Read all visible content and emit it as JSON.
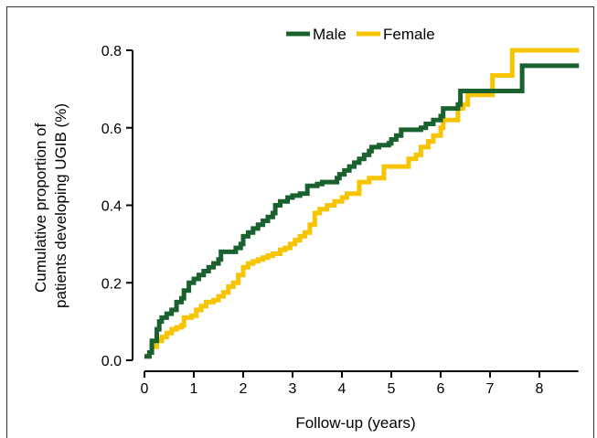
{
  "chart_data": {
    "type": "line",
    "step": true,
    "title": "",
    "xlabel": "Follow-up (years)",
    "ylabel": [
      "Cumulative proportion of",
      "patients developing UGIB (%)"
    ],
    "xlim": [
      -0.2,
      8.9
    ],
    "ylim": [
      0.0,
      0.8
    ],
    "xticks": [
      "0",
      "1",
      "2",
      "3",
      "4",
      "5",
      "6",
      "7",
      "8"
    ],
    "yticks": [
      "0.0",
      "0.2",
      "0.4",
      "0.6",
      "0.8"
    ],
    "grid": false,
    "legend_position": "top-center",
    "series": [
      {
        "name": "Male",
        "color": "#1a6130",
        "points": [
          [
            0.0,
            0.01
          ],
          [
            0.1,
            0.02
          ],
          [
            0.15,
            0.05
          ],
          [
            0.25,
            0.08
          ],
          [
            0.3,
            0.1
          ],
          [
            0.35,
            0.11
          ],
          [
            0.45,
            0.12
          ],
          [
            0.55,
            0.13
          ],
          [
            0.65,
            0.15
          ],
          [
            0.75,
            0.16
          ],
          [
            0.8,
            0.18
          ],
          [
            0.9,
            0.2
          ],
          [
            1.0,
            0.21
          ],
          [
            1.1,
            0.22
          ],
          [
            1.2,
            0.23
          ],
          [
            1.3,
            0.24
          ],
          [
            1.4,
            0.25
          ],
          [
            1.5,
            0.26
          ],
          [
            1.55,
            0.28
          ],
          [
            1.75,
            0.28
          ],
          [
            1.85,
            0.29
          ],
          [
            1.95,
            0.3
          ],
          [
            2.0,
            0.32
          ],
          [
            2.1,
            0.33
          ],
          [
            2.2,
            0.34
          ],
          [
            2.3,
            0.35
          ],
          [
            2.4,
            0.36
          ],
          [
            2.5,
            0.37
          ],
          [
            2.6,
            0.38
          ],
          [
            2.65,
            0.4
          ],
          [
            2.75,
            0.41
          ],
          [
            2.9,
            0.42
          ],
          [
            3.0,
            0.425
          ],
          [
            3.15,
            0.43
          ],
          [
            3.3,
            0.45
          ],
          [
            3.5,
            0.455
          ],
          [
            3.6,
            0.46
          ],
          [
            3.9,
            0.47
          ],
          [
            3.95,
            0.48
          ],
          [
            4.05,
            0.49
          ],
          [
            4.15,
            0.5
          ],
          [
            4.25,
            0.51
          ],
          [
            4.35,
            0.52
          ],
          [
            4.45,
            0.53
          ],
          [
            4.55,
            0.54
          ],
          [
            4.6,
            0.55
          ],
          [
            4.75,
            0.555
          ],
          [
            4.95,
            0.56
          ],
          [
            5.0,
            0.57
          ],
          [
            5.1,
            0.58
          ],
          [
            5.2,
            0.595
          ],
          [
            5.5,
            0.595
          ],
          [
            5.6,
            0.6
          ],
          [
            5.7,
            0.61
          ],
          [
            5.85,
            0.62
          ],
          [
            6.0,
            0.63
          ],
          [
            6.05,
            0.65
          ],
          [
            6.3,
            0.65
          ],
          [
            6.35,
            0.66
          ],
          [
            6.4,
            0.695
          ],
          [
            7.6,
            0.695
          ],
          [
            7.65,
            0.76
          ],
          [
            8.8,
            0.76
          ]
        ]
      },
      {
        "name": "Female",
        "color": "#f6c400",
        "points": [
          [
            0.0,
            0.01
          ],
          [
            0.1,
            0.02
          ],
          [
            0.15,
            0.035
          ],
          [
            0.25,
            0.05
          ],
          [
            0.35,
            0.06
          ],
          [
            0.45,
            0.07
          ],
          [
            0.55,
            0.08
          ],
          [
            0.65,
            0.085
          ],
          [
            0.75,
            0.09
          ],
          [
            0.8,
            0.11
          ],
          [
            0.95,
            0.115
          ],
          [
            1.05,
            0.13
          ],
          [
            1.15,
            0.14
          ],
          [
            1.25,
            0.15
          ],
          [
            1.4,
            0.155
          ],
          [
            1.5,
            0.165
          ],
          [
            1.6,
            0.175
          ],
          [
            1.7,
            0.19
          ],
          [
            1.8,
            0.2
          ],
          [
            1.9,
            0.22
          ],
          [
            2.0,
            0.24
          ],
          [
            2.1,
            0.25
          ],
          [
            2.2,
            0.255
          ],
          [
            2.3,
            0.26
          ],
          [
            2.4,
            0.265
          ],
          [
            2.5,
            0.27
          ],
          [
            2.6,
            0.275
          ],
          [
            2.75,
            0.285
          ],
          [
            2.85,
            0.29
          ],
          [
            2.95,
            0.3
          ],
          [
            3.05,
            0.31
          ],
          [
            3.15,
            0.32
          ],
          [
            3.25,
            0.33
          ],
          [
            3.35,
            0.35
          ],
          [
            3.45,
            0.38
          ],
          [
            3.55,
            0.39
          ],
          [
            3.7,
            0.4
          ],
          [
            3.85,
            0.41
          ],
          [
            4.0,
            0.42
          ],
          [
            4.1,
            0.43
          ],
          [
            4.3,
            0.43
          ],
          [
            4.35,
            0.46
          ],
          [
            4.55,
            0.47
          ],
          [
            4.8,
            0.47
          ],
          [
            4.85,
            0.5
          ],
          [
            5.3,
            0.5
          ],
          [
            5.35,
            0.52
          ],
          [
            5.5,
            0.53
          ],
          [
            5.6,
            0.55
          ],
          [
            5.75,
            0.565
          ],
          [
            5.85,
            0.58
          ],
          [
            6.0,
            0.6
          ],
          [
            6.05,
            0.62
          ],
          [
            6.3,
            0.62
          ],
          [
            6.35,
            0.65
          ],
          [
            6.45,
            0.66
          ],
          [
            6.55,
            0.685
          ],
          [
            7.0,
            0.685
          ],
          [
            7.05,
            0.735
          ],
          [
            7.4,
            0.735
          ],
          [
            7.45,
            0.8
          ],
          [
            8.8,
            0.8
          ]
        ]
      }
    ]
  }
}
